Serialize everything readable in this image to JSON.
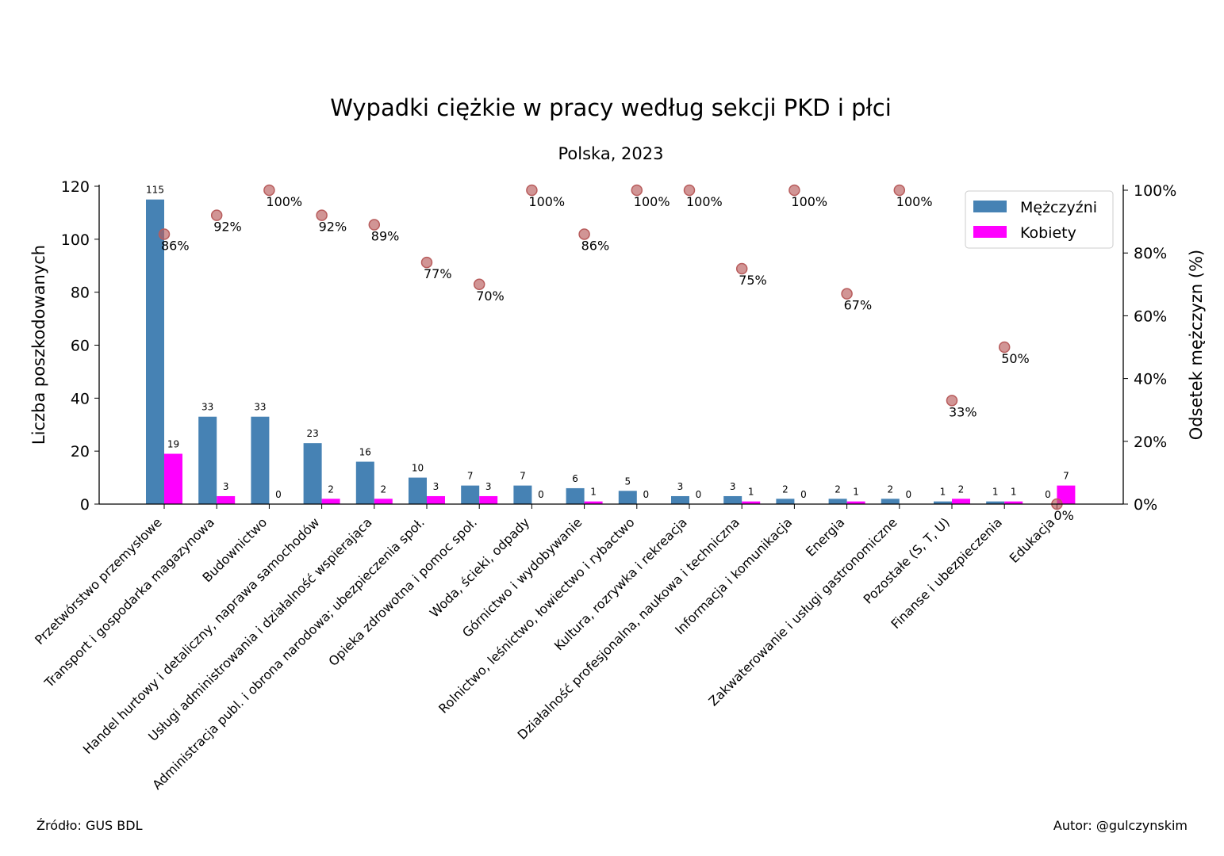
{
  "chart_data": {
    "type": "bar",
    "title": "Wypadki ciężkie w pracy według sekcji PKD i płci",
    "subtitle": "Polska, 2023",
    "ylabel": "Liczba poszkodowanych",
    "y2label": "Odsetek mężczyzn (%)",
    "ylim": [
      0,
      120
    ],
    "y2lim": [
      0,
      100
    ],
    "yticks": [
      "0",
      "20",
      "40",
      "60",
      "80",
      "100",
      "120"
    ],
    "y2ticks": [
      "0%",
      "20%",
      "40%",
      "60%",
      "80%",
      "100%"
    ],
    "categories": [
      "Przetwórstwo przemysłowe",
      "Transport i gospodarka magazynowa",
      "Budownictwo",
      "Handel hurtowy i detaliczny, naprawa samochodów",
      "Usługi administrowania i działalność wspierająca",
      "Administracja publ. i obrona narodowa; ubezpieczenia społ.",
      "Opieka zdrowotna i pomoc społ.",
      "Woda, ścieki, odpady",
      "Górnictwo i wydobywanie",
      "Rolnictwo, leśnictwo, łowiectwo i rybactwo",
      "Kultura, rozrywka i rekreacja",
      "Działalność profesjonalna, naukowa i techniczna",
      "Informacja i komunikacja",
      "Energia",
      "Zakwaterowanie i usługi gastronomiczne",
      "Pozostałe (S, T, U)",
      "Finanse i ubezpieczenia",
      "Edukacja"
    ],
    "series": [
      {
        "name": "Mężczyźni",
        "color": "#4682b4",
        "values": [
          115,
          33,
          33,
          23,
          16,
          10,
          7,
          7,
          6,
          5,
          3,
          3,
          2,
          2,
          2,
          1,
          1,
          0
        ]
      },
      {
        "name": "Kobiety",
        "color": "#ff00ff",
        "values": [
          19,
          3,
          0,
          2,
          2,
          3,
          3,
          0,
          1,
          0,
          0,
          1,
          0,
          1,
          0,
          2,
          1,
          7
        ]
      }
    ],
    "share_men": {
      "color": "#b85c5c",
      "values": [
        86,
        92,
        100,
        92,
        89,
        77,
        70,
        100,
        86,
        100,
        100,
        75,
        100,
        67,
        100,
        33,
        50,
        0
      ],
      "labels": [
        "86%",
        "92%",
        "100%",
        "92%",
        "89%",
        "77%",
        "70%",
        "100%",
        "86%",
        "100%",
        "100%",
        "75%",
        "100%",
        "67%",
        "100%",
        "33%",
        "50%",
        "0%"
      ]
    },
    "legend": "top-right"
  },
  "footer": {
    "source": "Źródło: GUS BDL",
    "author": "Autor: @gulczynskim"
  }
}
